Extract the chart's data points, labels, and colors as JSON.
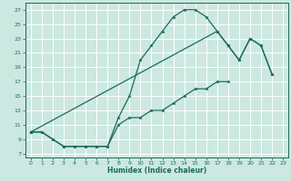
{
  "xlabel": "Humidex (Indice chaleur)",
  "bg_color": "#cce8e0",
  "grid_color": "#ffffff",
  "line_color": "#1a6b5a",
  "xlim": [
    -0.5,
    23.5
  ],
  "ylim": [
    6.5,
    28
  ],
  "xticks": [
    0,
    1,
    2,
    3,
    4,
    5,
    6,
    7,
    8,
    9,
    10,
    11,
    12,
    13,
    14,
    15,
    16,
    17,
    18,
    19,
    20,
    21,
    22,
    23
  ],
  "yticks": [
    7,
    9,
    11,
    13,
    15,
    17,
    19,
    21,
    23,
    25,
    27
  ],
  "line1_x": [
    0,
    1,
    2,
    3,
    4,
    5,
    6,
    7,
    8,
    9,
    10,
    11,
    12,
    13,
    14,
    15,
    16,
    17,
    18,
    19,
    20,
    21,
    22
  ],
  "line1_y": [
    10,
    10,
    9,
    8,
    8,
    8,
    8,
    8,
    12,
    15,
    20,
    22,
    24,
    26,
    27,
    27,
    26,
    24,
    22,
    20,
    23,
    22,
    18
  ],
  "line2_x": [
    0,
    1,
    2,
    3,
    4,
    5,
    6,
    7,
    8,
    9,
    10,
    11,
    12,
    13,
    14,
    15,
    16,
    17,
    18
  ],
  "line2_y": [
    10,
    10,
    9,
    8,
    8,
    8,
    8,
    8,
    11,
    12,
    12,
    13,
    13,
    14,
    15,
    16,
    16,
    17,
    17
  ],
  "line3_x": [
    0,
    17,
    18,
    19,
    20,
    21,
    22
  ],
  "line3_y": [
    10,
    24,
    22,
    20,
    23,
    22,
    18
  ]
}
